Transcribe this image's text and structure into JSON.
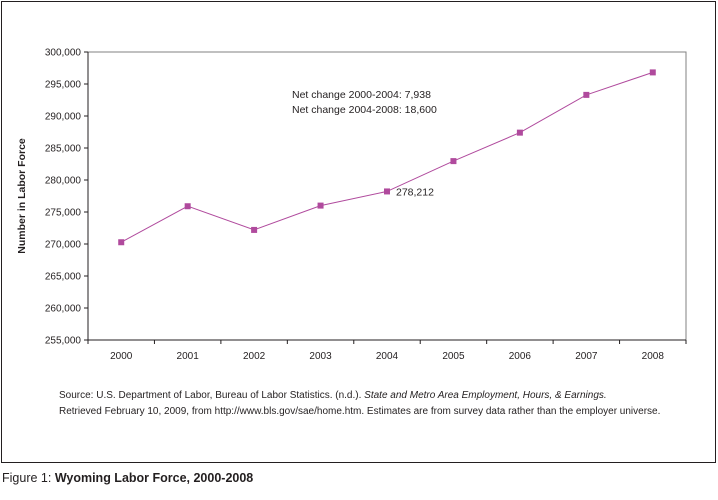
{
  "colors": {
    "series": "#b04a9d",
    "axis": "#231f20",
    "plot_border": "#808080"
  },
  "chart_data": {
    "type": "line",
    "title": "",
    "xlabel": "",
    "ylabel": "Number in Labor Force",
    "ylim": [
      255000,
      300000
    ],
    "y_ticks": [
      "255,000",
      "260,000",
      "265,000",
      "270,000",
      "275,000",
      "280,000",
      "285,000",
      "290,000",
      "295,000",
      "300,000"
    ],
    "y_tick_values": [
      255000,
      260000,
      265000,
      270000,
      275000,
      280000,
      285000,
      290000,
      295000,
      300000
    ],
    "categories": [
      "2000",
      "2001",
      "2002",
      "2003",
      "2004",
      "2005",
      "2006",
      "2007",
      "2008"
    ],
    "series": [
      {
        "values": [
          270274,
          275900,
          272200,
          276000,
          278212,
          282950,
          287400,
          293300,
          296812
        ]
      }
    ],
    "grid": false,
    "annotations": [
      {
        "text": "Net change 2000-2004: 7,938"
      },
      {
        "text": "Net change 2004-2008: 18,600"
      },
      {
        "text": "278,212",
        "category": "2004",
        "value": 278212
      }
    ]
  },
  "source": {
    "prefix": "Source: U.S. Department of Labor, Bureau of Labor Statistics. (n.d.). ",
    "title": "State and Metro Area Employment, Hours, & Earnings.",
    "line2": "Retrieved February 10, 2009, from http://www.bls.gov/sae/home.htm. Estimates are from survey data rather than the employer universe."
  },
  "caption": {
    "prefix": "Figure 1: ",
    "title": "Wyoming Labor Force, 2000-2008"
  }
}
